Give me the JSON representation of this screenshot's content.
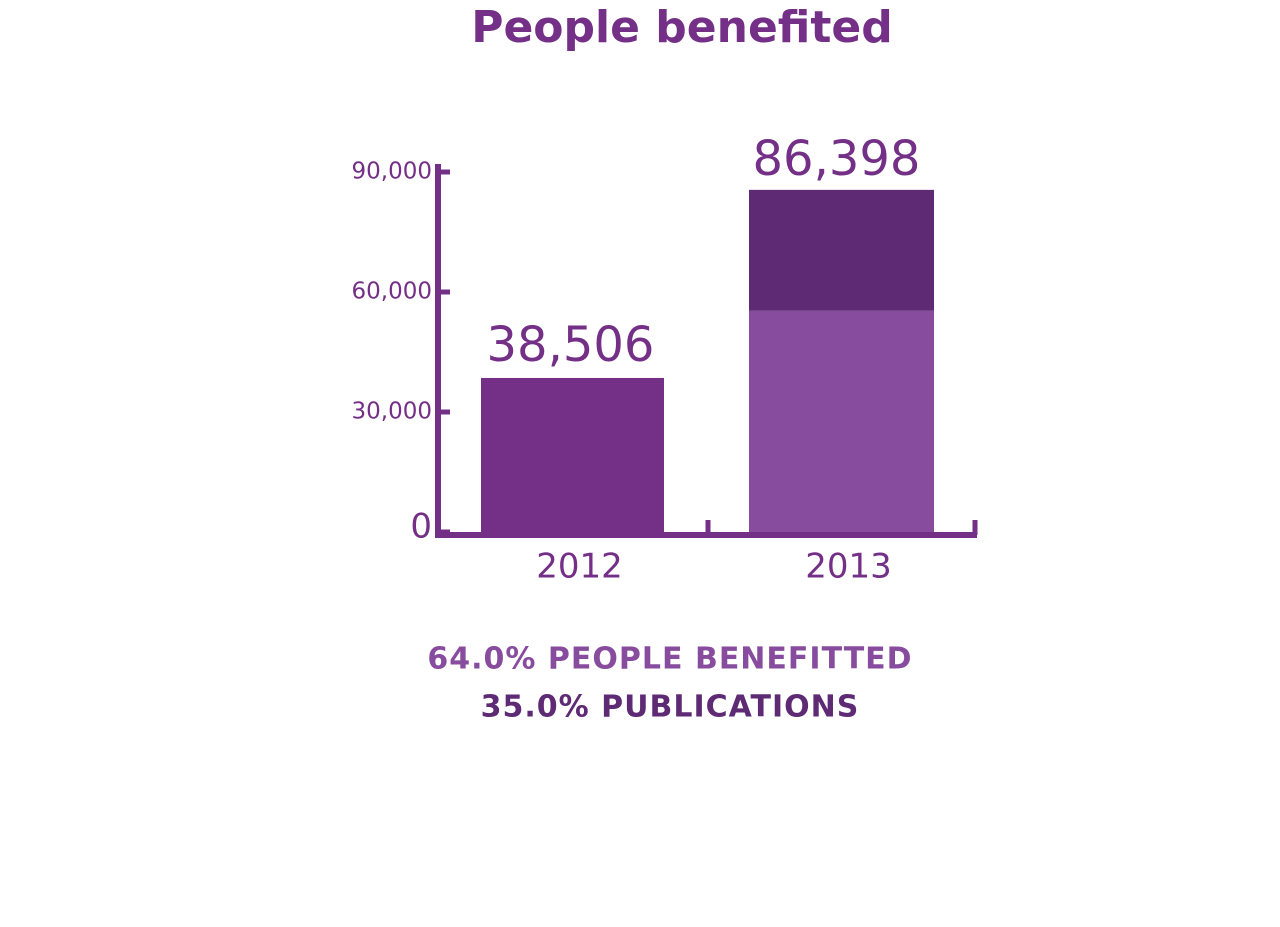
{
  "chart_data": {
    "type": "bar",
    "title": "People benefited",
    "categories": [
      "2012",
      "2013"
    ],
    "values": [
      38506,
      86398
    ],
    "value_labels": [
      "38,506",
      "86,398"
    ],
    "color": "#742f87",
    "series": [
      {
        "name": "64.0% PEOPLE BENEFITTED",
        "color": "#874c9e",
        "values": [
          null,
          55295
        ]
      },
      {
        "name": "35.0% PUBLICATIONS",
        "color": "#5e2a74",
        "values": [
          null,
          30239
        ]
      }
    ],
    "ylim": [
      0,
      90000
    ],
    "yticks": [
      0,
      {
        "value": 30000,
        "label": "30,000"
      },
      {
        "value": 60000,
        "label": "60,000"
      },
      {
        "value": 90000,
        "label": "90,000"
      }
    ]
  }
}
